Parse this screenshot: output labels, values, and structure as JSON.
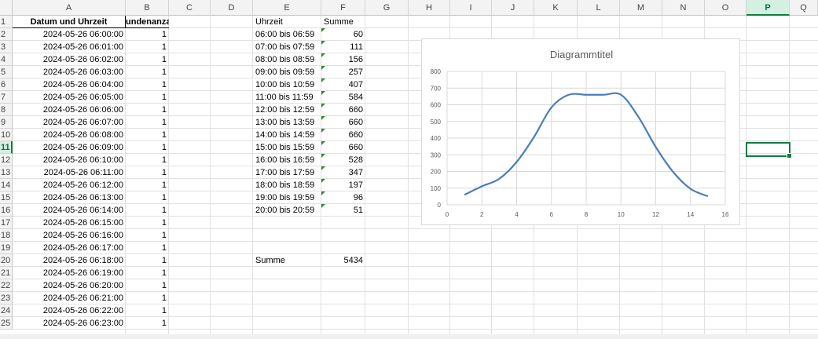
{
  "columns": [
    "A",
    "B",
    "C",
    "D",
    "E",
    "F",
    "G",
    "H",
    "I",
    "J",
    "K",
    "L",
    "M",
    "N",
    "O",
    "P",
    "Q"
  ],
  "rows": [
    "1",
    "2",
    "3",
    "4",
    "5",
    "6",
    "7",
    "8",
    "9",
    "10",
    "11",
    "12",
    "13",
    "14",
    "15",
    "16",
    "17",
    "18",
    "19",
    "20",
    "21",
    "22",
    "23",
    "24",
    "25"
  ],
  "selected": {
    "column": "P",
    "row": "11"
  },
  "table_a": {
    "header_datetime": "Datum und Uhrzeit",
    "header_count": "undenanzahl",
    "rows": [
      {
        "datetime": "2024-05-26 06:00:00",
        "count": "1"
      },
      {
        "datetime": "2024-05-26 06:01:00",
        "count": "1"
      },
      {
        "datetime": "2024-05-26 06:02:00",
        "count": "1"
      },
      {
        "datetime": "2024-05-26 06:03:00",
        "count": "1"
      },
      {
        "datetime": "2024-05-26 06:04:00",
        "count": "1"
      },
      {
        "datetime": "2024-05-26 06:05:00",
        "count": "1"
      },
      {
        "datetime": "2024-05-26 06:06:00",
        "count": "1"
      },
      {
        "datetime": "2024-05-26 06:07:00",
        "count": "1"
      },
      {
        "datetime": "2024-05-26 06:08:00",
        "count": "1"
      },
      {
        "datetime": "2024-05-26 06:09:00",
        "count": "1"
      },
      {
        "datetime": "2024-05-26 06:10:00",
        "count": "1"
      },
      {
        "datetime": "2024-05-26 06:11:00",
        "count": "1"
      },
      {
        "datetime": "2024-05-26 06:12:00",
        "count": "1"
      },
      {
        "datetime": "2024-05-26 06:13:00",
        "count": "1"
      },
      {
        "datetime": "2024-05-26 06:14:00",
        "count": "1"
      },
      {
        "datetime": "2024-05-26 06:15:00",
        "count": "1"
      },
      {
        "datetime": "2024-05-26 06:16:00",
        "count": "1"
      },
      {
        "datetime": "2024-05-26 06:17:00",
        "count": "1"
      },
      {
        "datetime": "2024-05-26 06:18:00",
        "count": "1"
      },
      {
        "datetime": "2024-05-26 06:19:00",
        "count": "1"
      },
      {
        "datetime": "2024-05-26 06:20:00",
        "count": "1"
      },
      {
        "datetime": "2024-05-26 06:21:00",
        "count": "1"
      },
      {
        "datetime": "2024-05-26 06:22:00",
        "count": "1"
      },
      {
        "datetime": "2024-05-26 06:23:00",
        "count": "1"
      }
    ]
  },
  "table_e": {
    "header_time": "Uhrzeit",
    "header_sum": "Summe",
    "rows": [
      {
        "range": "06:00  bis 06:59",
        "sum": "60"
      },
      {
        "range": "07:00  bis 07:59",
        "sum": "111"
      },
      {
        "range": "08:00  bis 08:59",
        "sum": "156"
      },
      {
        "range": "09:00  bis 09:59",
        "sum": "257"
      },
      {
        "range": "10:00  bis 10:59",
        "sum": "407"
      },
      {
        "range": "11:00  bis 11:59",
        "sum": "584"
      },
      {
        "range": "12:00  bis 12:59",
        "sum": "660"
      },
      {
        "range": "13:00  bis 13:59",
        "sum": "660"
      },
      {
        "range": "14:00  bis 14:59",
        "sum": "660"
      },
      {
        "range": "15:00  bis 15:59",
        "sum": "660"
      },
      {
        "range": "16:00 bis 16:59",
        "sum": "528"
      },
      {
        "range": "17:00 bis 17:59",
        "sum": "347"
      },
      {
        "range": "18:00 bis 18:59",
        "sum": "197"
      },
      {
        "range": "19:00 bis 19:59",
        "sum": "96"
      },
      {
        "range": "20:00 bis 20:59",
        "sum": "51"
      }
    ],
    "total_label": "Summe",
    "total_value": "5434"
  },
  "chart_data": {
    "type": "line",
    "title": "Diagrammtitel",
    "smooth": true,
    "x": [
      1,
      2,
      3,
      4,
      5,
      6,
      7,
      8,
      9,
      10,
      11,
      12,
      13,
      14,
      15
    ],
    "series": [
      {
        "values": [
          60,
          111,
          156,
          257,
          407,
          584,
          660,
          660,
          660,
          660,
          528,
          347,
          197,
          96,
          51
        ],
        "color": "#4a7ebb"
      }
    ],
    "xlim": [
      0,
      16
    ],
    "ylim": [
      0,
      800
    ],
    "xticks": [
      "0",
      "2",
      "4",
      "6",
      "8",
      "10",
      "12",
      "14",
      "16"
    ],
    "yticks": [
      "0",
      "100",
      "200",
      "300",
      "400",
      "500",
      "600",
      "700",
      "800"
    ],
    "grid": true,
    "legend": "none"
  }
}
